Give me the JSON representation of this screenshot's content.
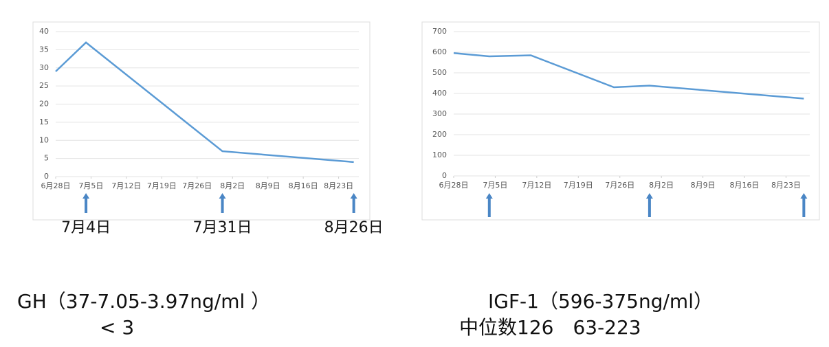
{
  "chart_data": [
    {
      "type": "line",
      "color": "#5b9bd5",
      "x": [
        "6月28日",
        "7月4日",
        "7月31日",
        "8月26日"
      ],
      "values": [
        29,
        37,
        7,
        4
      ],
      "xlim": [
        "6月28日",
        "8月27日"
      ],
      "xticks": [
        "6月28日",
        "7月5日",
        "7月12日",
        "7月19日",
        "7月26日",
        "8月2日",
        "8月9日",
        "8月16日",
        "8月23日"
      ],
      "ylim": [
        0,
        40
      ],
      "yticks": [
        0,
        5,
        10,
        15,
        20,
        25,
        30,
        35,
        40
      ],
      "grid": true,
      "annotations": [
        "7月4日",
        "7月31日",
        "8月26日"
      ]
    },
    {
      "type": "line",
      "color": "#5b9bd5",
      "x": [
        "6月28日",
        "7月4日",
        "7月11日",
        "7月25日",
        "7月31日",
        "8月26日"
      ],
      "values": [
        596,
        580,
        585,
        430,
        438,
        375
      ],
      "xlim": [
        "6月28日",
        "8月27日"
      ],
      "xticks": [
        "6月28日",
        "7月5日",
        "7月12日",
        "7月19日",
        "7月26日",
        "8月2日",
        "8月9日",
        "8月16日",
        "8月23日"
      ],
      "ylim": [
        0,
        700
      ],
      "yticks": [
        0,
        100,
        200,
        300,
        400,
        500,
        600,
        700
      ],
      "grid": true
    }
  ],
  "captions": [
    "GH（37-7.05-3.97ng/ml ）",
    "< 3",
    "IGF-1（596-375ng/ml）",
    "中位数126　63-223"
  ]
}
